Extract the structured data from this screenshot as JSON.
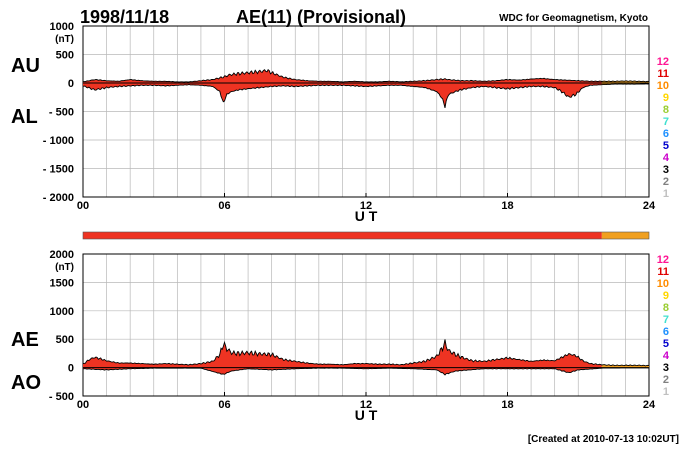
{
  "header": {
    "date": "1998/11/18",
    "title": "AE(11) (Provisional)",
    "source": "WDC for Geomagnetism, Kyoto"
  },
  "footer": {
    "created": "[Created at 2010-07-13 10:02UT]"
  },
  "station_count_scale": {
    "labels": [
      "12",
      "11",
      "10",
      "9",
      "8",
      "7",
      "6",
      "5",
      "4",
      "3",
      "2",
      "1"
    ],
    "colors": [
      "#ff1493",
      "#e00000",
      "#ff8c00",
      "#ffd700",
      "#9acd32",
      "#40e0d0",
      "#1e90ff",
      "#0000cd",
      "#cc00cc",
      "#000000",
      "#808080",
      "#c0c0c0"
    ]
  },
  "coverage_bar": [
    {
      "from_hour": 0,
      "to_hour": 22,
      "stations": "11",
      "color": "#ee3322"
    },
    {
      "from_hour": 22,
      "to_hour": 24,
      "stations": "10",
      "color": "#f0a020"
    }
  ],
  "chart_data": [
    {
      "type": "area",
      "panel": "AU/AL",
      "series_labels": [
        "AU",
        "AL"
      ],
      "unit": "(nT)",
      "xlabel": "U T",
      "xticks": [
        "00",
        "06",
        "12",
        "18",
        "24"
      ],
      "xlim": [
        0,
        24
      ],
      "yticks": [
        "1000",
        "500",
        "0",
        "- 500",
        "- 1000",
        "- 1500",
        "- 2000"
      ],
      "ylim": [
        -2000,
        1000
      ],
      "fill_color": "#ee3322",
      "late_fill_color": "#f0a020",
      "series": [
        {
          "name": "AU",
          "x": [
            0,
            0.5,
            1,
            1.5,
            2,
            2.5,
            3,
            3.5,
            4,
            4.5,
            5,
            5.5,
            5.8,
            6,
            6.2,
            6.5,
            7,
            7.5,
            7.8,
            8,
            8.5,
            9,
            9.5,
            10,
            10.5,
            11,
            11.5,
            12,
            12.5,
            13,
            13.5,
            14,
            14.5,
            15,
            15.3,
            15.5,
            16,
            16.5,
            17,
            17.5,
            18,
            18.5,
            19,
            19.5,
            20,
            20.5,
            21,
            21.5,
            22,
            22.5,
            23,
            23.5,
            24
          ],
          "values": [
            20,
            60,
            40,
            30,
            60,
            40,
            30,
            30,
            20,
            20,
            40,
            60,
            90,
            110,
            140,
            160,
            180,
            200,
            220,
            180,
            100,
            60,
            40,
            30,
            30,
            20,
            30,
            20,
            20,
            30,
            20,
            30,
            40,
            60,
            70,
            60,
            40,
            40,
            30,
            40,
            60,
            50,
            70,
            80,
            60,
            50,
            40,
            30,
            30,
            30,
            35,
            30,
            25
          ]
        },
        {
          "name": "AL",
          "x": [
            0,
            0.5,
            1,
            1.5,
            2,
            2.5,
            3,
            3.5,
            4,
            4.5,
            5,
            5.5,
            5.8,
            5.95,
            6.1,
            6.3,
            6.6,
            7,
            7.5,
            8,
            8.5,
            9,
            9.5,
            10,
            10.5,
            11,
            11.5,
            12,
            12.5,
            13,
            13.5,
            14,
            14.5,
            15,
            15.2,
            15.35,
            15.5,
            15.8,
            16,
            16.5,
            17,
            17.5,
            18,
            18.5,
            19,
            19.5,
            20,
            20.3,
            20.6,
            20.9,
            21.2,
            21.5,
            22,
            22.5,
            23,
            23.5,
            24
          ],
          "values": [
            -50,
            -120,
            -80,
            -60,
            -50,
            -40,
            -40,
            -50,
            -40,
            -30,
            -40,
            -60,
            -150,
            -350,
            -200,
            -150,
            -120,
            -100,
            -80,
            -60,
            -50,
            -60,
            -50,
            -40,
            -40,
            -40,
            -50,
            -60,
            -50,
            -40,
            -40,
            -60,
            -80,
            -150,
            -250,
            -400,
            -200,
            -150,
            -120,
            -80,
            -60,
            -80,
            -100,
            -80,
            -60,
            -60,
            -80,
            -150,
            -250,
            -200,
            -80,
            -40,
            -30,
            -20,
            -20,
            -20,
            -15
          ]
        }
      ]
    },
    {
      "type": "area",
      "panel": "AE/AO",
      "series_labels": [
        "AE",
        "AO"
      ],
      "unit": "(nT)",
      "xlabel": "U T",
      "xticks": [
        "00",
        "06",
        "12",
        "18",
        "24"
      ],
      "xlim": [
        0,
        24
      ],
      "yticks": [
        "2000",
        "1500",
        "1000",
        "500",
        "0",
        "- 500"
      ],
      "ylim": [
        -500,
        2000
      ],
      "fill_color": "#ee3322",
      "late_fill_color": "#f0a020",
      "series": [
        {
          "name": "AE",
          "x": [
            0,
            0.3,
            0.5,
            0.7,
            1,
            1.5,
            2,
            2.5,
            3,
            3.5,
            4,
            4.5,
            5,
            5.5,
            5.8,
            5.95,
            6.1,
            6.3,
            6.6,
            7,
            7.5,
            8,
            8.5,
            9,
            9.5,
            10,
            10.5,
            11,
            11.5,
            12,
            12.5,
            13,
            13.5,
            14,
            14.5,
            15,
            15.2,
            15.35,
            15.5,
            15.8,
            16,
            16.5,
            17,
            17.5,
            18,
            18.5,
            19,
            19.5,
            20,
            20.3,
            20.6,
            20.9,
            21.2,
            21.5,
            22,
            22.5,
            23,
            23.5,
            24
          ],
          "values": [
            60,
            150,
            180,
            160,
            120,
            80,
            80,
            70,
            60,
            70,
            60,
            50,
            70,
            110,
            230,
            420,
            330,
            260,
            250,
            260,
            240,
            230,
            140,
            110,
            80,
            60,
            60,
            50,
            70,
            70,
            60,
            60,
            50,
            80,
            110,
            200,
            320,
            430,
            300,
            230,
            190,
            120,
            110,
            140,
            170,
            140,
            110,
            130,
            120,
            180,
            240,
            210,
            120,
            70,
            50,
            40,
            40,
            40,
            35
          ]
        },
        {
          "name": "AO",
          "x": [
            0,
            1,
            2,
            3,
            4,
            5,
            5.95,
            6.3,
            7,
            8,
            9,
            10,
            11,
            12,
            13,
            14,
            15,
            15.35,
            15.8,
            17,
            18,
            19,
            20,
            20.6,
            21,
            22,
            23,
            24
          ],
          "values": [
            -20,
            -40,
            -20,
            -10,
            -10,
            -10,
            -120,
            -60,
            -20,
            -40,
            -20,
            -10,
            -10,
            -20,
            -10,
            -20,
            -40,
            -120,
            -60,
            -20,
            -20,
            -20,
            -20,
            -90,
            -40,
            -10,
            -5,
            -5
          ]
        }
      ]
    }
  ]
}
